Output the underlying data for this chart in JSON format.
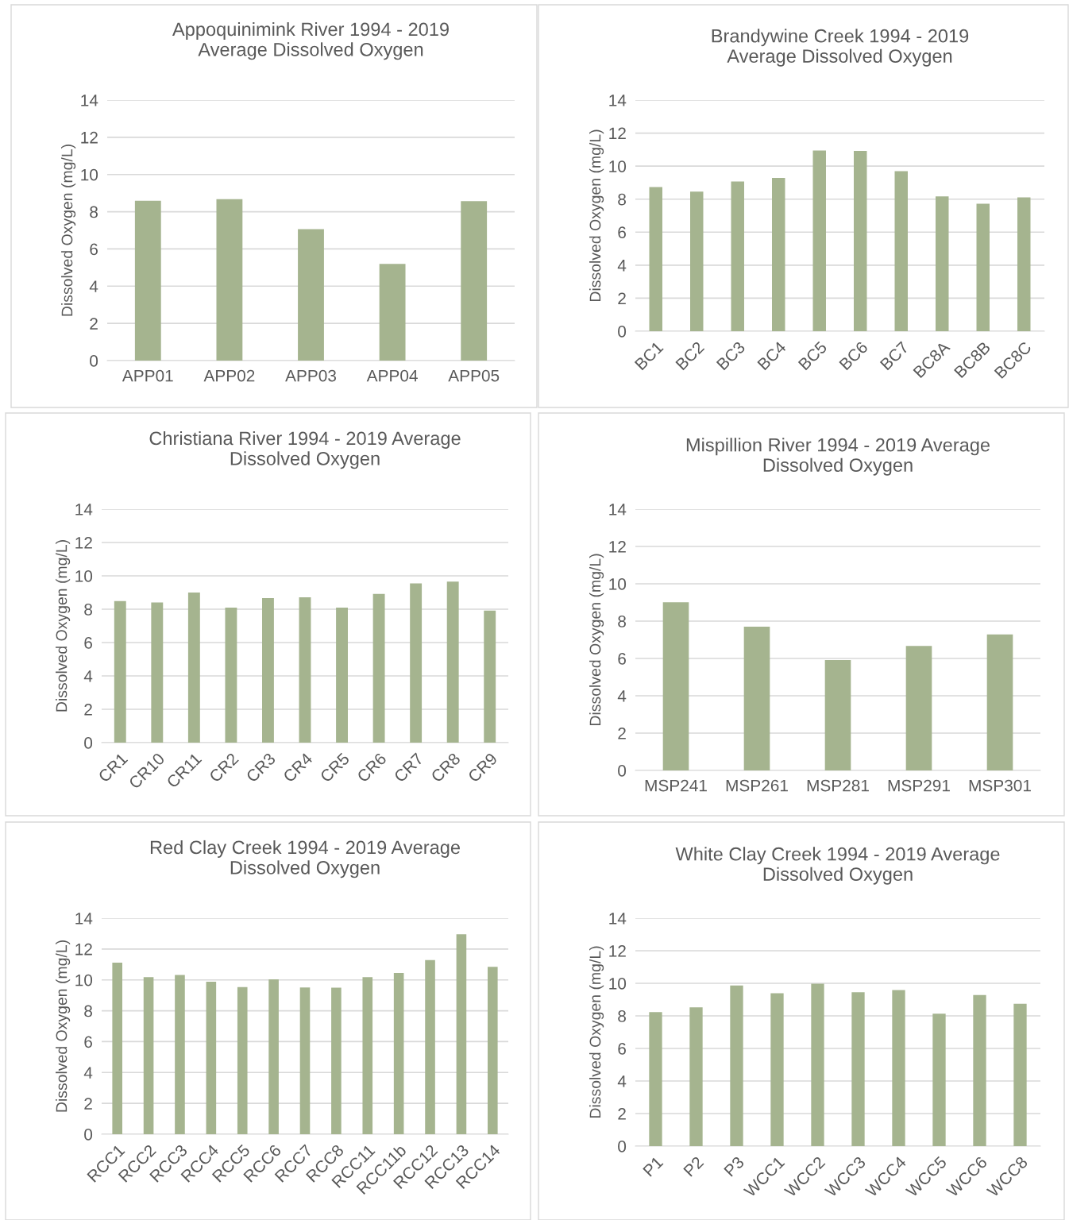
{
  "chart_data": [
    {
      "type": "bar",
      "title": "Appoquinimink River 1994 - 2019\nAverage Dissolved Oxygen",
      "ylabel": "Dissolved Oxygen (mg/L)",
      "categories": [
        "APP01",
        "APP02",
        "APP03",
        "APP04",
        "APP05"
      ],
      "values": [
        8.59,
        8.67,
        7.06,
        5.2,
        8.57
      ],
      "color": "#a5b48f",
      "ylim": [
        0,
        14
      ],
      "yticks": [
        0,
        2,
        4,
        6,
        8,
        10,
        12,
        14
      ],
      "grid": "y",
      "legend": false
    },
    {
      "type": "bar",
      "title": "Brandywine Creek 1994 - 2019\nAverage Dissolved Oxygen",
      "ylabel": "Dissolved Oxygen (mg/L)",
      "categories": [
        "BC1",
        "BC2",
        "BC3",
        "BC4",
        "BC5",
        "BC6",
        "BC7",
        "BC8A",
        "BC8B",
        "BC8C"
      ],
      "values": [
        8.73,
        8.45,
        9.07,
        9.29,
        10.95,
        10.92,
        9.7,
        8.17,
        7.72,
        8.11
      ],
      "color": "#a5b48f",
      "ylim": [
        0,
        14
      ],
      "yticks": [
        0,
        2,
        4,
        6,
        8,
        10,
        12,
        14
      ],
      "grid": "y",
      "legend": false
    },
    {
      "type": "bar",
      "title": "Christiana River 1994 - 2019 Average\nDissolved Oxygen",
      "ylabel": "Dissolved Oxygen (mg/L)",
      "categories": [
        "CR1",
        "CR10",
        "CR11",
        "CR2",
        "CR3",
        "CR4",
        "CR5",
        "CR6",
        "CR7",
        "CR8",
        "CR9"
      ],
      "values": [
        8.49,
        8.41,
        9.0,
        8.1,
        8.67,
        8.72,
        8.09,
        8.92,
        9.55,
        9.65,
        7.92
      ],
      "color": "#a5b48f",
      "ylim": [
        0,
        14
      ],
      "yticks": [
        0,
        2,
        4,
        6,
        8,
        10,
        12,
        14
      ],
      "grid": "y",
      "legend": false
    },
    {
      "type": "bar",
      "title": "Mispillion River 1994 - 2019 Average\nDissolved Oxygen",
      "ylabel": "Dissolved Oxygen (mg/L)",
      "categories": [
        "MSP241",
        "MSP261",
        "MSP281",
        "MSP291",
        "MSP301"
      ],
      "values": [
        9.01,
        7.7,
        5.92,
        6.67,
        7.29
      ],
      "color": "#a5b48f",
      "ylim": [
        0,
        14
      ],
      "yticks": [
        0,
        2,
        4,
        6,
        8,
        10,
        12,
        14
      ],
      "grid": "y",
      "legend": false
    },
    {
      "type": "bar",
      "title": "Red Clay Creek 1994 - 2019 Average\nDissolved Oxygen",
      "ylabel": "Dissolved Oxygen (mg/L)",
      "categories": [
        "RCC1",
        "RCC2",
        "RCC3",
        "RCC4",
        "RCC5",
        "RCC6",
        "RCC7",
        "RCC8",
        "RCC11",
        "RCC11b",
        "RCC12",
        "RCC13",
        "RCC14"
      ],
      "values": [
        11.12,
        10.18,
        10.32,
        9.88,
        9.53,
        10.04,
        9.51,
        9.49,
        10.18,
        10.45,
        11.28,
        12.96,
        10.85
      ],
      "color": "#a5b48f",
      "ylim": [
        0,
        14
      ],
      "yticks": [
        0,
        2,
        4,
        6,
        8,
        10,
        12,
        14
      ],
      "grid": "y",
      "legend": false
    },
    {
      "type": "bar",
      "title": "White Clay Creek 1994 - 2019 Average\nDissolved Oxygen",
      "ylabel": "Dissolved Oxygen (mg/L)",
      "categories": [
        "P1",
        "P2",
        "P3",
        "WCC1",
        "WCC2",
        "WCC3",
        "WCC4",
        "WCC5",
        "WCC6",
        "WCC8"
      ],
      "values": [
        8.23,
        8.53,
        9.86,
        9.39,
        9.97,
        9.45,
        9.58,
        8.14,
        9.28,
        8.75
      ],
      "color": "#a5b48f",
      "ylim": [
        0,
        14
      ],
      "yticks": [
        0,
        2,
        4,
        6,
        8,
        10,
        12,
        14
      ],
      "grid": "y",
      "legend": false
    }
  ]
}
